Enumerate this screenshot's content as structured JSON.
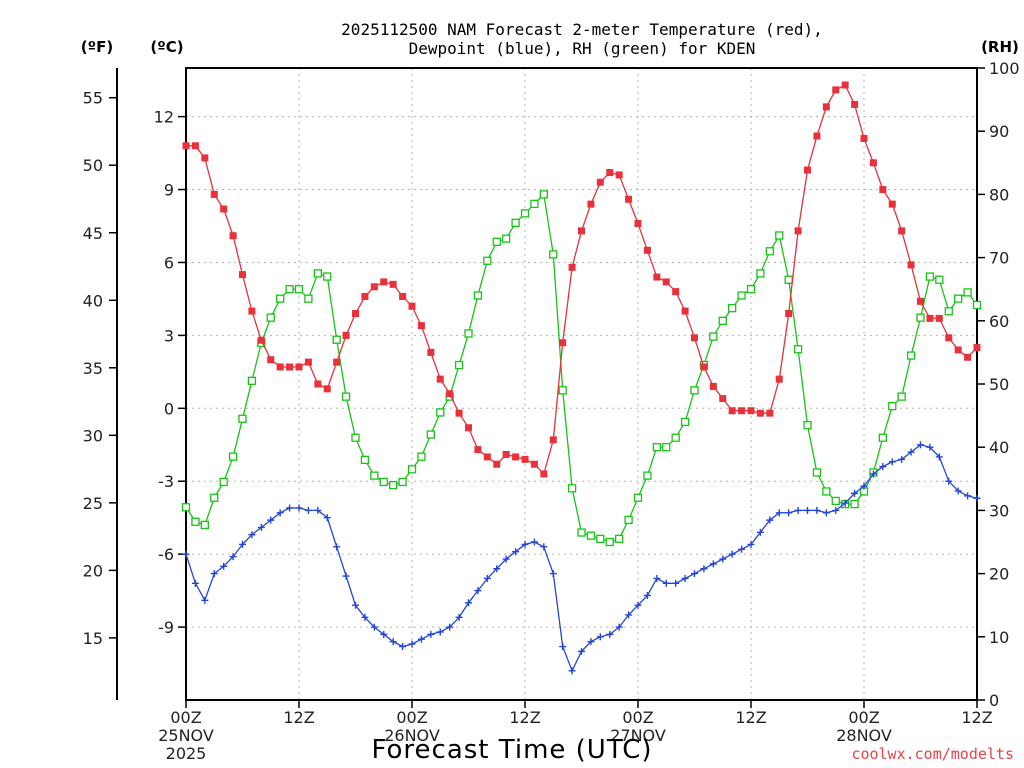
{
  "title_line1": "2025112500 NAM Forecast 2-meter Temperature (red),",
  "title_line2": "Dewpoint (blue), RH (green) for KDEN",
  "units": {
    "fahrenheit": "(ºF)",
    "celsius": "(ºC)",
    "rh": "(RH)"
  },
  "xlabel": "Forecast Time (UTC)",
  "credit": "coolwx.com/modelts",
  "chart_data": {
    "type": "line",
    "title": "2025112500 NAM Forecast 2-meter Temperature (red), Dewpoint (blue), RH (green) for KDEN",
    "xlabel": "Forecast Time (UTC)",
    "x_unit": "forecast hour from 2025-11-25 00Z",
    "x_range": [
      0,
      84
    ],
    "x_ticks": [
      {
        "hour": 0,
        "label": [
          "00Z",
          "25NOV",
          "2025"
        ]
      },
      {
        "hour": 12,
        "label": [
          "12Z"
        ]
      },
      {
        "hour": 24,
        "label": [
          "00Z",
          "26NOV"
        ]
      },
      {
        "hour": 36,
        "label": [
          "12Z"
        ]
      },
      {
        "hour": 48,
        "label": [
          "00Z",
          "27NOV"
        ]
      },
      {
        "hour": 60,
        "label": [
          "12Z"
        ]
      },
      {
        "hour": 72,
        "label": [
          "00Z",
          "28NOV"
        ]
      },
      {
        "hour": 84,
        "label": [
          "12Z"
        ]
      }
    ],
    "celsius_axis": {
      "label": "(ºC)",
      "range": [
        -12,
        14
      ],
      "ticks": [
        -9,
        -6,
        -3,
        0,
        3,
        6,
        9,
        12
      ]
    },
    "fahrenheit_axis": {
      "label": "(ºF)",
      "range": [
        10.4,
        57.2
      ],
      "ticks": [
        15,
        20,
        25,
        30,
        35,
        40,
        45,
        50,
        55
      ]
    },
    "rh_axis": {
      "label": "(RH)",
      "range": [
        0,
        100
      ],
      "ticks": [
        0,
        10,
        20,
        30,
        40,
        50,
        60,
        70,
        80,
        90,
        100
      ]
    },
    "grid": true,
    "colors": {
      "temperature": "#e8313a",
      "dewpoint": "#2446d8",
      "rh": "#17c417"
    },
    "series": [
      {
        "name": "Temperature",
        "unit": "C",
        "values": [
          [
            0,
            10.8
          ],
          [
            1,
            10.8
          ],
          [
            2,
            10.3
          ],
          [
            3,
            8.8
          ],
          [
            4,
            8.2
          ],
          [
            5,
            7.1
          ],
          [
            6,
            5.5
          ],
          [
            7,
            4.0
          ],
          [
            8,
            2.8
          ],
          [
            9,
            2.0
          ],
          [
            10,
            1.7
          ],
          [
            11,
            1.7
          ],
          [
            12,
            1.7
          ],
          [
            13,
            1.9
          ],
          [
            14,
            1.0
          ],
          [
            15,
            0.8
          ],
          [
            16,
            1.9
          ],
          [
            17,
            3.0
          ],
          [
            18,
            3.9
          ],
          [
            19,
            4.6
          ],
          [
            20,
            5.0
          ],
          [
            21,
            5.2
          ],
          [
            22,
            5.1
          ],
          [
            23,
            4.6
          ],
          [
            24,
            4.2
          ],
          [
            25,
            3.4
          ],
          [
            26,
            2.3
          ],
          [
            27,
            1.2
          ],
          [
            28,
            0.6
          ],
          [
            29,
            -0.2
          ],
          [
            30,
            -0.8
          ],
          [
            31,
            -1.7
          ],
          [
            32,
            -2.0
          ],
          [
            33,
            -2.3
          ],
          [
            34,
            -1.9
          ],
          [
            35,
            -2.0
          ],
          [
            36,
            -2.1
          ],
          [
            37,
            -2.3
          ],
          [
            38,
            -2.7
          ],
          [
            39,
            -1.3
          ],
          [
            40,
            2.7
          ],
          [
            41,
            5.8
          ],
          [
            42,
            7.3
          ],
          [
            43,
            8.4
          ],
          [
            44,
            9.3
          ],
          [
            45,
            9.7
          ],
          [
            46,
            9.6
          ],
          [
            47,
            8.6
          ],
          [
            48,
            7.6
          ],
          [
            49,
            6.5
          ],
          [
            50,
            5.4
          ],
          [
            51,
            5.2
          ],
          [
            52,
            4.8
          ],
          [
            53,
            4.0
          ],
          [
            54,
            2.9
          ],
          [
            55,
            1.7
          ],
          [
            56,
            0.9
          ],
          [
            57,
            0.4
          ],
          [
            58,
            -0.1
          ],
          [
            59,
            -0.1
          ],
          [
            60,
            -0.1
          ],
          [
            61,
            -0.2
          ],
          [
            62,
            -0.2
          ],
          [
            63,
            1.2
          ],
          [
            64,
            3.9
          ],
          [
            65,
            7.3
          ],
          [
            66,
            9.8
          ],
          [
            67,
            11.2
          ],
          [
            68,
            12.4
          ],
          [
            69,
            13.1
          ],
          [
            70,
            13.3
          ],
          [
            71,
            12.5
          ],
          [
            72,
            11.1
          ],
          [
            73,
            10.1
          ],
          [
            74,
            9.0
          ],
          [
            75,
            8.4
          ],
          [
            76,
            7.3
          ],
          [
            77,
            5.9
          ],
          [
            78,
            4.4
          ],
          [
            79,
            3.7
          ],
          [
            80,
            3.7
          ],
          [
            81,
            2.9
          ],
          [
            82,
            2.4
          ],
          [
            83,
            2.1
          ],
          [
            84,
            2.5
          ]
        ]
      },
      {
        "name": "Dewpoint",
        "unit": "C",
        "values": [
          [
            0,
            -6.0
          ],
          [
            1,
            -7.2
          ],
          [
            2,
            -7.9
          ],
          [
            3,
            -6.8
          ],
          [
            4,
            -6.5
          ],
          [
            5,
            -6.1
          ],
          [
            6,
            -5.6
          ],
          [
            7,
            -5.2
          ],
          [
            8,
            -4.9
          ],
          [
            9,
            -4.6
          ],
          [
            10,
            -4.3
          ],
          [
            11,
            -4.1
          ],
          [
            12,
            -4.1
          ],
          [
            13,
            -4.2
          ],
          [
            14,
            -4.2
          ],
          [
            15,
            -4.5
          ],
          [
            16,
            -5.7
          ],
          [
            17,
            -6.9
          ],
          [
            18,
            -8.1
          ],
          [
            19,
            -8.6
          ],
          [
            20,
            -9.0
          ],
          [
            21,
            -9.3
          ],
          [
            22,
            -9.6
          ],
          [
            23,
            -9.8
          ],
          [
            24,
            -9.7
          ],
          [
            25,
            -9.5
          ],
          [
            26,
            -9.3
          ],
          [
            27,
            -9.2
          ],
          [
            28,
            -9.0
          ],
          [
            29,
            -8.6
          ],
          [
            30,
            -8.0
          ],
          [
            31,
            -7.5
          ],
          [
            32,
            -7.0
          ],
          [
            33,
            -6.6
          ],
          [
            34,
            -6.2
          ],
          [
            35,
            -5.9
          ],
          [
            36,
            -5.6
          ],
          [
            37,
            -5.5
          ],
          [
            38,
            -5.7
          ],
          [
            39,
            -6.8
          ],
          [
            40,
            -9.8
          ],
          [
            41,
            -10.8
          ],
          [
            42,
            -10.0
          ],
          [
            43,
            -9.6
          ],
          [
            44,
            -9.4
          ],
          [
            45,
            -9.3
          ],
          [
            46,
            -9.0
          ],
          [
            47,
            -8.5
          ],
          [
            48,
            -8.1
          ],
          [
            49,
            -7.7
          ],
          [
            50,
            -7.0
          ],
          [
            51,
            -7.2
          ],
          [
            52,
            -7.2
          ],
          [
            53,
            -7.0
          ],
          [
            54,
            -6.8
          ],
          [
            55,
            -6.6
          ],
          [
            56,
            -6.4
          ],
          [
            57,
            -6.2
          ],
          [
            58,
            -6.0
          ],
          [
            59,
            -5.8
          ],
          [
            60,
            -5.6
          ],
          [
            61,
            -5.1
          ],
          [
            62,
            -4.6
          ],
          [
            63,
            -4.3
          ],
          [
            64,
            -4.3
          ],
          [
            65,
            -4.2
          ],
          [
            66,
            -4.2
          ],
          [
            67,
            -4.2
          ],
          [
            68,
            -4.3
          ],
          [
            69,
            -4.2
          ],
          [
            70,
            -3.9
          ],
          [
            71,
            -3.5
          ],
          [
            72,
            -3.2
          ],
          [
            73,
            -2.7
          ],
          [
            74,
            -2.4
          ],
          [
            75,
            -2.2
          ],
          [
            76,
            -2.1
          ],
          [
            77,
            -1.8
          ],
          [
            78,
            -1.5
          ],
          [
            79,
            -1.6
          ],
          [
            80,
            -2.0
          ],
          [
            81,
            -3.0
          ],
          [
            82,
            -3.4
          ],
          [
            83,
            -3.6
          ],
          [
            84,
            -3.7
          ]
        ]
      },
      {
        "name": "RH",
        "unit": "%",
        "values": [
          [
            0,
            30.5
          ],
          [
            1,
            28.2
          ],
          [
            2,
            27.7
          ],
          [
            3,
            32.0
          ],
          [
            4,
            34.5
          ],
          [
            5,
            38.5
          ],
          [
            6,
            44.5
          ],
          [
            7,
            50.5
          ],
          [
            8,
            56.5
          ],
          [
            9,
            60.5
          ],
          [
            10,
            63.5
          ],
          [
            11,
            65.0
          ],
          [
            12,
            65.0
          ],
          [
            13,
            63.5
          ],
          [
            14,
            67.5
          ],
          [
            15,
            67.0
          ],
          [
            16,
            57.0
          ],
          [
            17,
            48.0
          ],
          [
            18,
            41.5
          ],
          [
            19,
            38.0
          ],
          [
            20,
            35.5
          ],
          [
            21,
            34.5
          ],
          [
            22,
            34.0
          ],
          [
            23,
            34.5
          ],
          [
            24,
            36.5
          ],
          [
            25,
            38.5
          ],
          [
            26,
            42.0
          ],
          [
            27,
            45.5
          ],
          [
            28,
            48.0
          ],
          [
            29,
            53.0
          ],
          [
            30,
            58.0
          ],
          [
            31,
            64.0
          ],
          [
            32,
            69.5
          ],
          [
            33,
            72.5
          ],
          [
            34,
            73.0
          ],
          [
            35,
            75.5
          ],
          [
            36,
            77.0
          ],
          [
            37,
            78.5
          ],
          [
            38,
            80.0
          ],
          [
            39,
            70.5
          ],
          [
            40,
            49.0
          ],
          [
            41,
            33.5
          ],
          [
            42,
            26.5
          ],
          [
            43,
            26.0
          ],
          [
            44,
            25.5
          ],
          [
            45,
            25.0
          ],
          [
            46,
            25.5
          ],
          [
            47,
            28.5
          ],
          [
            48,
            32.0
          ],
          [
            49,
            35.5
          ],
          [
            50,
            40.0
          ],
          [
            51,
            40.0
          ],
          [
            52,
            41.5
          ],
          [
            53,
            44.0
          ],
          [
            54,
            49.0
          ],
          [
            55,
            53.0
          ],
          [
            56,
            57.5
          ],
          [
            57,
            60.0
          ],
          [
            58,
            62.0
          ],
          [
            59,
            64.0
          ],
          [
            60,
            65.0
          ],
          [
            61,
            67.5
          ],
          [
            62,
            71.0
          ],
          [
            63,
            73.5
          ],
          [
            64,
            66.5
          ],
          [
            65,
            55.5
          ],
          [
            66,
            43.5
          ],
          [
            67,
            36.0
          ],
          [
            68,
            33.0
          ],
          [
            69,
            31.5
          ],
          [
            70,
            31.0
          ],
          [
            71,
            31.0
          ],
          [
            72,
            33.0
          ],
          [
            73,
            36.0
          ],
          [
            74,
            41.5
          ],
          [
            75,
            46.5
          ],
          [
            76,
            48.0
          ],
          [
            77,
            54.5
          ],
          [
            78,
            60.5
          ],
          [
            79,
            67.0
          ],
          [
            80,
            66.5
          ],
          [
            81,
            61.5
          ],
          [
            82,
            63.5
          ],
          [
            83,
            64.5
          ],
          [
            84,
            62.5
          ]
        ]
      }
    ]
  }
}
